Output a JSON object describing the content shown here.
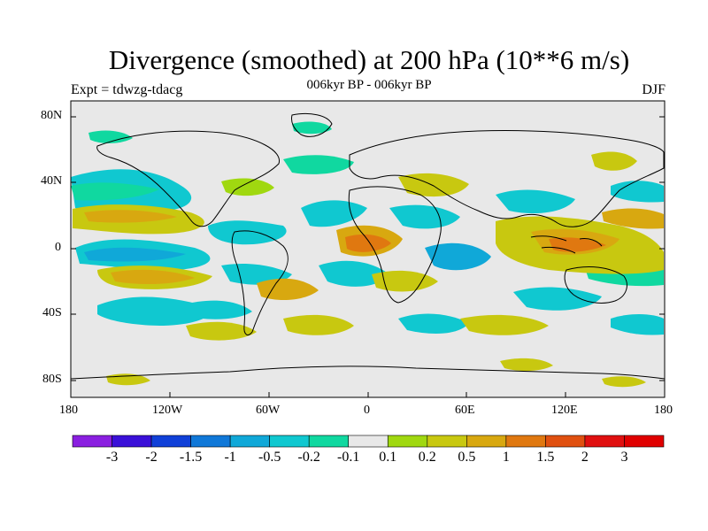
{
  "title": "Divergence (smoothed) at 200 hPa (10**6 m/s)",
  "subtitle": "006kyr BP - 006kyr BP",
  "left_label": "Expt = tdwzg-tdacg",
  "right_label": "DJF",
  "y_ticks": [
    "80N",
    "40N",
    "0",
    "40S",
    "80S"
  ],
  "x_ticks": [
    "180",
    "120W",
    "60W",
    "0",
    "60E",
    "120E",
    "180"
  ],
  "colorbar": {
    "labels": [
      "-3",
      "-2",
      "-1.5",
      "-1",
      "-0.5",
      "-0.2",
      "-0.1",
      "0.1",
      "0.2",
      "0.5",
      "1",
      "1.5",
      "2",
      "3"
    ],
    "colors": [
      "#8a1fe0",
      "#3a10d8",
      "#1040d8",
      "#1078d8",
      "#10a8d8",
      "#10c8d0",
      "#10d8a0",
      "#e8e8e8",
      "#a0d810",
      "#c8c810",
      "#d8a810",
      "#e07810",
      "#e05010",
      "#e01010",
      "#e00000"
    ]
  },
  "map_colors": {
    "background": "#e8e8e8",
    "coast": "#000000"
  }
}
